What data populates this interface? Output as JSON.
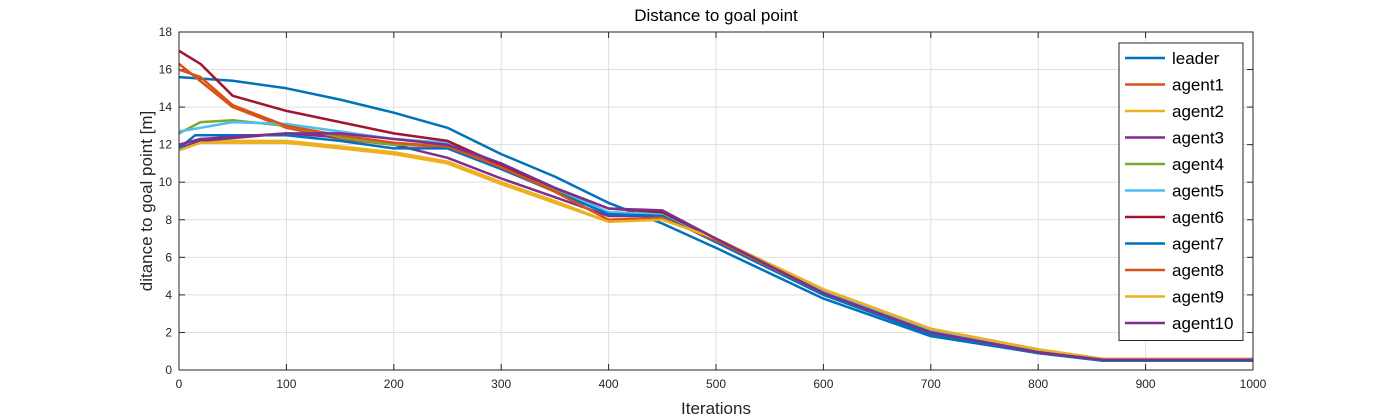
{
  "chart_data": {
    "type": "line",
    "title": "Distance to goal point",
    "xlabel": "Iterations",
    "ylabel": "ditance to goal point [m]",
    "xlim": [
      0,
      1000
    ],
    "ylim": [
      0,
      18
    ],
    "xticks": [
      0,
      100,
      200,
      300,
      400,
      500,
      600,
      700,
      800,
      900,
      1000
    ],
    "yticks": [
      0,
      2,
      4,
      6,
      8,
      10,
      12,
      14,
      16,
      18
    ],
    "grid": true,
    "legend_position": "top-right",
    "series": [
      {
        "name": "leader",
        "color": "#0072BD",
        "points": [
          [
            0,
            15.6
          ],
          [
            50,
            15.4
          ],
          [
            100,
            15.0
          ],
          [
            150,
            14.4
          ],
          [
            200,
            13.7
          ],
          [
            250,
            12.9
          ],
          [
            300,
            11.5
          ],
          [
            350,
            10.3
          ],
          [
            400,
            8.9
          ],
          [
            450,
            7.8
          ],
          [
            500,
            6.5
          ],
          [
            600,
            3.8
          ],
          [
            700,
            1.8
          ],
          [
            800,
            0.9
          ],
          [
            860,
            0.5
          ],
          [
            1000,
            0.5
          ]
        ]
      },
      {
        "name": "agent1",
        "color": "#D95319",
        "points": [
          [
            0,
            16.3
          ],
          [
            50,
            14.0
          ],
          [
            100,
            12.9
          ],
          [
            150,
            12.3
          ],
          [
            200,
            12.0
          ],
          [
            250,
            11.9
          ],
          [
            300,
            10.8
          ],
          [
            350,
            9.5
          ],
          [
            400,
            8.0
          ],
          [
            450,
            8.1
          ],
          [
            500,
            6.9
          ],
          [
            600,
            4.1
          ],
          [
            700,
            2.0
          ],
          [
            800,
            0.9
          ],
          [
            860,
            0.55
          ],
          [
            1000,
            0.55
          ]
        ]
      },
      {
        "name": "agent2",
        "color": "#EDB120",
        "points": [
          [
            0,
            11.8
          ],
          [
            20,
            12.2
          ],
          [
            100,
            12.2
          ],
          [
            150,
            11.9
          ],
          [
            200,
            11.6
          ],
          [
            250,
            11.1
          ],
          [
            300,
            10.0
          ],
          [
            350,
            9.0
          ],
          [
            400,
            7.9
          ],
          [
            450,
            8.1
          ],
          [
            500,
            7.0
          ],
          [
            600,
            4.3
          ],
          [
            700,
            2.2
          ],
          [
            800,
            1.1
          ],
          [
            860,
            0.6
          ],
          [
            1000,
            0.6
          ]
        ]
      },
      {
        "name": "agent3",
        "color": "#7E2F8E",
        "points": [
          [
            0,
            11.8
          ],
          [
            20,
            12.2
          ],
          [
            100,
            12.6
          ],
          [
            150,
            12.4
          ],
          [
            200,
            12.0
          ],
          [
            250,
            11.3
          ],
          [
            300,
            10.2
          ],
          [
            350,
            9.2
          ],
          [
            400,
            8.2
          ],
          [
            450,
            8.2
          ],
          [
            500,
            6.9
          ],
          [
            600,
            4.1
          ],
          [
            700,
            2.0
          ],
          [
            800,
            0.95
          ],
          [
            860,
            0.55
          ],
          [
            1000,
            0.55
          ]
        ]
      },
      {
        "name": "agent4",
        "color": "#77AC30",
        "points": [
          [
            0,
            12.6
          ],
          [
            20,
            13.2
          ],
          [
            50,
            13.3
          ],
          [
            100,
            13.0
          ],
          [
            150,
            12.4
          ],
          [
            200,
            12.0
          ],
          [
            250,
            12.0
          ],
          [
            300,
            10.9
          ],
          [
            350,
            9.6
          ],
          [
            400,
            8.4
          ],
          [
            450,
            8.3
          ],
          [
            500,
            7.0
          ],
          [
            600,
            4.2
          ],
          [
            700,
            2.1
          ],
          [
            800,
            1.0
          ],
          [
            860,
            0.55
          ],
          [
            1000,
            0.55
          ]
        ]
      },
      {
        "name": "agent5",
        "color": "#4DBEEE",
        "points": [
          [
            0,
            12.7
          ],
          [
            20,
            12.9
          ],
          [
            50,
            13.2
          ],
          [
            100,
            13.1
          ],
          [
            150,
            12.7
          ],
          [
            200,
            12.3
          ],
          [
            250,
            12.1
          ],
          [
            300,
            11.0
          ],
          [
            350,
            9.7
          ],
          [
            400,
            8.4
          ],
          [
            450,
            8.3
          ],
          [
            500,
            7.0
          ],
          [
            600,
            4.2
          ],
          [
            700,
            2.1
          ],
          [
            800,
            1.0
          ],
          [
            860,
            0.55
          ],
          [
            1000,
            0.55
          ]
        ]
      },
      {
        "name": "agent6",
        "color": "#A2142F",
        "points": [
          [
            0,
            17.0
          ],
          [
            20,
            16.3
          ],
          [
            50,
            14.6
          ],
          [
            100,
            13.8
          ],
          [
            150,
            13.2
          ],
          [
            200,
            12.6
          ],
          [
            250,
            12.2
          ],
          [
            300,
            10.9
          ],
          [
            350,
            9.7
          ],
          [
            400,
            8.6
          ],
          [
            450,
            8.4
          ],
          [
            500,
            7.0
          ],
          [
            600,
            4.1
          ],
          [
            700,
            2.0
          ],
          [
            800,
            0.95
          ],
          [
            860,
            0.55
          ],
          [
            1000,
            0.55
          ]
        ]
      },
      {
        "name": "agent7",
        "color": "#0072BD",
        "points": [
          [
            0,
            11.8
          ],
          [
            15,
            12.5
          ],
          [
            100,
            12.5
          ],
          [
            150,
            12.2
          ],
          [
            200,
            11.8
          ],
          [
            250,
            11.8
          ],
          [
            300,
            10.7
          ],
          [
            350,
            9.5
          ],
          [
            400,
            8.3
          ],
          [
            450,
            8.2
          ],
          [
            500,
            6.8
          ],
          [
            600,
            4.0
          ],
          [
            700,
            1.9
          ],
          [
            800,
            0.9
          ],
          [
            860,
            0.5
          ],
          [
            1000,
            0.5
          ]
        ]
      },
      {
        "name": "agent8",
        "color": "#D95319",
        "points": [
          [
            0,
            16.0
          ],
          [
            20,
            15.6
          ],
          [
            50,
            14.1
          ],
          [
            100,
            13.0
          ],
          [
            150,
            12.5
          ],
          [
            200,
            12.1
          ],
          [
            250,
            11.9
          ],
          [
            300,
            10.8
          ],
          [
            350,
            9.5
          ],
          [
            400,
            8.0
          ],
          [
            450,
            8.1
          ],
          [
            500,
            6.9
          ],
          [
            600,
            4.1
          ],
          [
            700,
            2.0
          ],
          [
            800,
            0.95
          ],
          [
            860,
            0.55
          ],
          [
            1000,
            0.55
          ]
        ]
      },
      {
        "name": "agent9",
        "color": "#EDB120",
        "points": [
          [
            0,
            11.7
          ],
          [
            20,
            12.1
          ],
          [
            100,
            12.1
          ],
          [
            150,
            11.8
          ],
          [
            200,
            11.5
          ],
          [
            250,
            11.0
          ],
          [
            300,
            9.9
          ],
          [
            350,
            8.9
          ],
          [
            400,
            7.9
          ],
          [
            450,
            8.0
          ],
          [
            500,
            7.0
          ],
          [
            600,
            4.3
          ],
          [
            700,
            2.2
          ],
          [
            800,
            1.1
          ],
          [
            860,
            0.6
          ],
          [
            1000,
            0.6
          ]
        ]
      },
      {
        "name": "agent10",
        "color": "#7E2F8E",
        "points": [
          [
            0,
            12.0
          ],
          [
            20,
            12.3
          ],
          [
            100,
            12.6
          ],
          [
            150,
            12.6
          ],
          [
            200,
            12.3
          ],
          [
            250,
            12.0
          ],
          [
            300,
            11.0
          ],
          [
            350,
            9.7
          ],
          [
            400,
            8.6
          ],
          [
            450,
            8.5
          ],
          [
            500,
            7.0
          ],
          [
            600,
            4.1
          ],
          [
            700,
            2.0
          ],
          [
            800,
            0.95
          ],
          [
            860,
            0.55
          ],
          [
            1000,
            0.55
          ]
        ]
      }
    ]
  }
}
